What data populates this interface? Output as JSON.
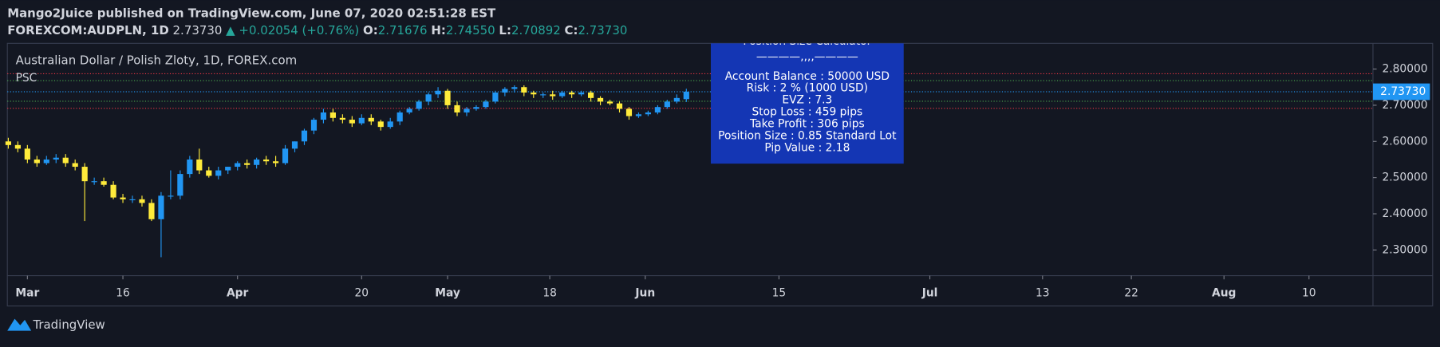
{
  "header": {
    "publisher": "Mango2Juice published on TradingView.com, June 07, 2020 02:51:28 EST",
    "symbol": "FOREXCOM:AUDPLN, 1D",
    "last": "2.73730",
    "change": "▲ +0.02054 (+0.76%)",
    "o_label": "O:",
    "o": "2.71676",
    "h_label": "H:",
    "h": "2.74550",
    "l_label": "L:",
    "l": "2.70892",
    "c_label": "C:",
    "c": "2.73730"
  },
  "chart_data": {
    "type": "candlestick",
    "title": "Australian Dollar / Polish Zloty, 1D, FOREX.com",
    "indicator": "PSC",
    "up_color": "#2196f3",
    "down_color": "#ffeb3b",
    "x": [
      -2,
      -1,
      0,
      1,
      2,
      3,
      4,
      5,
      6,
      7,
      8,
      9,
      10,
      11,
      12,
      13,
      14,
      15,
      16,
      17,
      18,
      19,
      20,
      21,
      22,
      23,
      24,
      25,
      26,
      27,
      28,
      29,
      30,
      31,
      32,
      33,
      34,
      35,
      36,
      37,
      38,
      39,
      40,
      41,
      42,
      43,
      44,
      45,
      46,
      47,
      48,
      49,
      50,
      51,
      52,
      53,
      54,
      55,
      56,
      57,
      58,
      59,
      60,
      61,
      62,
      63,
      64,
      65,
      66,
      67,
      68,
      69
    ],
    "close": [
      2.59,
      2.58,
      2.55,
      2.54,
      2.55,
      2.555,
      2.54,
      2.53,
      2.49,
      2.49,
      2.48,
      2.445,
      2.44,
      2.44,
      2.43,
      2.385,
      2.45,
      2.45,
      2.51,
      2.55,
      2.52,
      2.505,
      2.52,
      2.53,
      2.54,
      2.535,
      2.55,
      2.545,
      2.54,
      2.58,
      2.6,
      2.63,
      2.66,
      2.68,
      2.665,
      2.66,
      2.65,
      2.665,
      2.655,
      2.64,
      2.655,
      2.68,
      2.69,
      2.71,
      2.73,
      2.74,
      2.7,
      2.68,
      2.69,
      2.695,
      2.71,
      2.735,
      2.745,
      2.75,
      2.735,
      2.73,
      2.73,
      2.725,
      2.735,
      2.73,
      2.735,
      2.72,
      2.71,
      2.705,
      2.69,
      2.67,
      2.675,
      2.68,
      2.695,
      2.71,
      2.72,
      2.7373
    ],
    "open": [
      2.6,
      2.59,
      2.58,
      2.55,
      2.54,
      2.55,
      2.555,
      2.54,
      2.53,
      2.49,
      2.49,
      2.48,
      2.445,
      2.44,
      2.44,
      2.43,
      2.385,
      2.45,
      2.45,
      2.51,
      2.55,
      2.52,
      2.505,
      2.52,
      2.53,
      2.54,
      2.535,
      2.55,
      2.545,
      2.54,
      2.58,
      2.6,
      2.63,
      2.66,
      2.68,
      2.665,
      2.66,
      2.65,
      2.665,
      2.655,
      2.64,
      2.655,
      2.68,
      2.69,
      2.71,
      2.73,
      2.74,
      2.7,
      2.68,
      2.69,
      2.695,
      2.71,
      2.735,
      2.745,
      2.75,
      2.735,
      2.73,
      2.73,
      2.725,
      2.735,
      2.73,
      2.735,
      2.72,
      2.71,
      2.705,
      2.69,
      2.67,
      2.675,
      2.68,
      2.695,
      2.71,
      2.71676
    ],
    "high": [
      2.61,
      2.6,
      2.59,
      2.56,
      2.56,
      2.565,
      2.565,
      2.55,
      2.54,
      2.5,
      2.5,
      2.49,
      2.455,
      2.45,
      2.45,
      2.44,
      2.46,
      2.52,
      2.52,
      2.56,
      2.58,
      2.53,
      2.53,
      2.53,
      2.545,
      2.55,
      2.555,
      2.56,
      2.56,
      2.59,
      2.6,
      2.635,
      2.665,
      2.69,
      2.69,
      2.675,
      2.67,
      2.675,
      2.675,
      2.66,
      2.665,
      2.685,
      2.695,
      2.715,
      2.735,
      2.75,
      2.745,
      2.71,
      2.695,
      2.7,
      2.715,
      2.74,
      2.75,
      2.755,
      2.755,
      2.74,
      2.735,
      2.74,
      2.74,
      2.74,
      2.74,
      2.74,
      2.725,
      2.715,
      2.71,
      2.695,
      2.68,
      2.685,
      2.7,
      2.715,
      2.73,
      2.7455
    ],
    "low": [
      2.58,
      2.57,
      2.54,
      2.53,
      2.535,
      2.54,
      2.53,
      2.52,
      2.38,
      2.48,
      2.475,
      2.44,
      2.43,
      2.43,
      2.42,
      2.38,
      2.28,
      2.44,
      2.44,
      2.5,
      2.51,
      2.5,
      2.495,
      2.51,
      2.52,
      2.525,
      2.525,
      2.535,
      2.53,
      2.535,
      2.57,
      2.59,
      2.62,
      2.65,
      2.655,
      2.65,
      2.64,
      2.645,
      2.645,
      2.63,
      2.635,
      2.645,
      2.675,
      2.685,
      2.7,
      2.72,
      2.69,
      2.67,
      2.67,
      2.685,
      2.69,
      2.705,
      2.725,
      2.735,
      2.725,
      2.72,
      2.72,
      2.715,
      2.72,
      2.72,
      2.725,
      2.71,
      2.7,
      2.7,
      2.68,
      2.66,
      2.665,
      2.67,
      2.675,
      2.69,
      2.705,
      2.70892
    ],
    "xlim": [
      -2.1,
      140.9
    ],
    "xticks": [
      {
        "value": 0,
        "label": "Mar"
      },
      {
        "value": 10,
        "label": "16"
      },
      {
        "value": 22,
        "label": "Apr"
      },
      {
        "value": 35,
        "label": "20"
      },
      {
        "value": 44,
        "label": "May"
      },
      {
        "value": 54.7,
        "label": "18"
      },
      {
        "value": 64.7,
        "label": "Jun"
      },
      {
        "value": 78.7,
        "label": "15"
      },
      {
        "value": 94.5,
        "label": "Jul"
      },
      {
        "value": 106.3,
        "label": "13"
      },
      {
        "value": 115.6,
        "label": "22"
      },
      {
        "value": 125.3,
        "label": "Aug"
      },
      {
        "value": 134.2,
        "label": "10"
      }
    ],
    "ylim": [
      2.229,
      2.871
    ],
    "yticks": [
      {
        "value": 2.3,
        "label": "2.30000"
      },
      {
        "value": 2.4,
        "label": "2.40000"
      },
      {
        "value": 2.5,
        "label": "2.50000"
      },
      {
        "value": 2.6,
        "label": "2.60000"
      },
      {
        "value": 2.7,
        "label": "2.70000"
      },
      {
        "value": 2.8,
        "label": "2.80000"
      }
    ],
    "last_price": {
      "value": 2.7373,
      "label": "2.73730"
    },
    "levels": [
      {
        "value": 2.787,
        "color": "#f23645"
      },
      {
        "value": 2.7679,
        "color": "#4caf50"
      },
      {
        "value": 2.7373,
        "color": "#2196f3"
      },
      {
        "value": 2.711,
        "color": "#4caf50"
      },
      {
        "value": 2.6914,
        "color": "#f23645"
      }
    ],
    "info_box": [
      "Position Size Calculator",
      "————‚‚‚‚————",
      "Account Balance : 50000 USD",
      "Risk : 2 % (1000 USD)",
      "EVZ : 7.3",
      "Stop Loss : 459 pips",
      "Take Profit : 306 pips",
      "Position Size : 0.85 Standard Lot",
      "Pip Value : 2.18"
    ]
  },
  "footer": {
    "brand": "TradingView"
  }
}
